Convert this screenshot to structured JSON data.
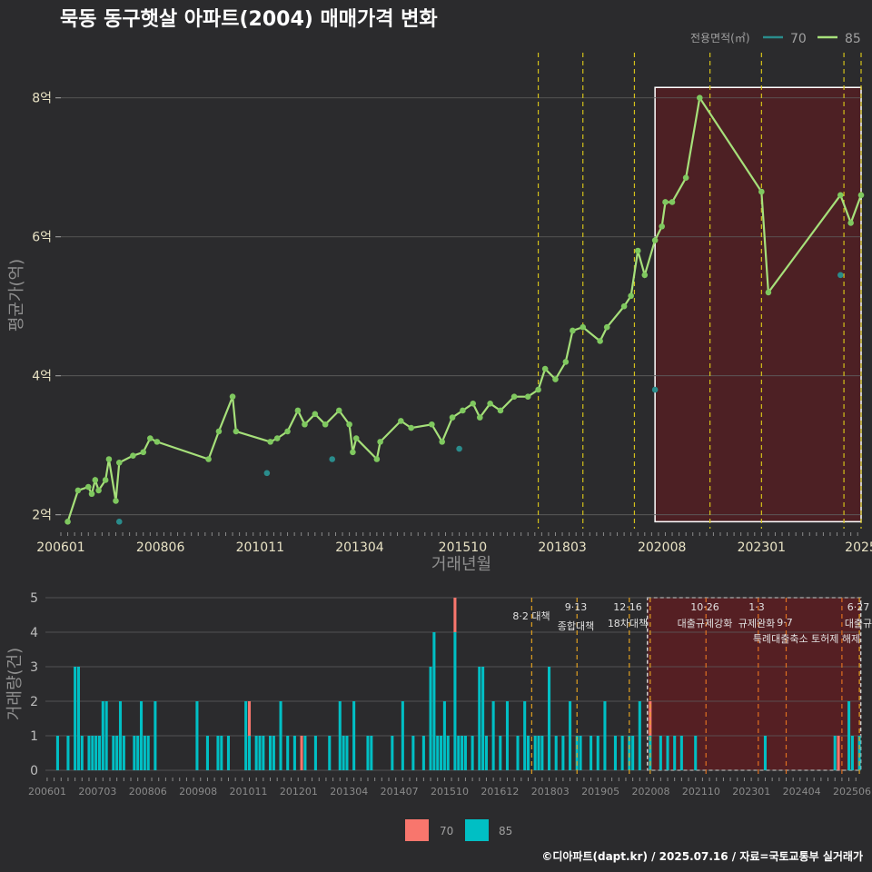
{
  "title": "묵동 동구햇살 아파트(2004) 매매가격 변화",
  "footer": "©디아파트(dapt.kr) / 2025.07.16 / 자료=국토교통부 실거래가",
  "legend_top": {
    "title": "전용면적(㎡)",
    "items": [
      {
        "label": "70",
        "color": "#2a8c8c"
      },
      {
        "label": "85",
        "color": "#a6e07a"
      }
    ]
  },
  "legend_bottom": {
    "items": [
      {
        "label": "70",
        "color": "#f8766d"
      },
      {
        "label": "85",
        "color": "#00bfc4"
      }
    ]
  },
  "chart_data": [
    {
      "type": "line",
      "id": "price",
      "xlabel": "거래년월",
      "ylabel": "평균가(억)",
      "ylim": [
        1.8,
        8.65
      ],
      "y_ticks": [
        2,
        4,
        6,
        8
      ],
      "y_tick_labels": [
        "2억",
        "4억",
        "6억",
        "8억"
      ],
      "x_ticks": [
        "2006-01",
        "2008-06",
        "2010-11",
        "2013-04",
        "2015-10",
        "2018-03",
        "2020-08",
        "2023-01",
        "2025-06"
      ],
      "x_tick_labels": [
        "200601",
        "200806",
        "201011",
        "201304",
        "201510",
        "201803",
        "202008",
        "202301",
        "2025"
      ],
      "shaded_region": {
        "from": "2020-06",
        "to": "2025-06",
        "color": "#5a1e22"
      },
      "event_lines": [
        "2017-08",
        "2018-09",
        "2019-12",
        "2021-10",
        "2023-01",
        "2025-01",
        "2025-06"
      ],
      "series": [
        {
          "name": "85",
          "color": "#a6e07a",
          "points": [
            [
              "2006-03",
              1.9
            ],
            [
              "2006-06",
              2.35
            ],
            [
              "2006-09",
              2.4
            ],
            [
              "2006-10",
              2.3
            ],
            [
              "2006-11",
              2.5
            ],
            [
              "2006-12",
              2.35
            ],
            [
              "2007-02",
              2.5
            ],
            [
              "2007-03",
              2.8
            ],
            [
              "2007-05",
              2.2
            ],
            [
              "2007-06",
              2.75
            ],
            [
              "2007-10",
              2.85
            ],
            [
              "2008-01",
              2.9
            ],
            [
              "2008-03",
              3.1
            ],
            [
              "2008-05",
              3.05
            ],
            [
              "2009-08",
              2.8
            ],
            [
              "2009-11",
              3.2
            ],
            [
              "2010-03",
              3.7
            ],
            [
              "2010-04",
              3.2
            ],
            [
              "2011-02",
              3.05
            ],
            [
              "2011-04",
              3.1
            ],
            [
              "2011-07",
              3.2
            ],
            [
              "2011-10",
              3.5
            ],
            [
              "2011-12",
              3.3
            ],
            [
              "2012-03",
              3.45
            ],
            [
              "2012-06",
              3.3
            ],
            [
              "2012-10",
              3.5
            ],
            [
              "2013-01",
              3.3
            ],
            [
              "2013-02",
              2.9
            ],
            [
              "2013-03",
              3.1
            ],
            [
              "2013-09",
              2.8
            ],
            [
              "2013-10",
              3.05
            ],
            [
              "2014-04",
              3.35
            ],
            [
              "2014-07",
              3.25
            ],
            [
              "2015-01",
              3.3
            ],
            [
              "2015-04",
              3.05
            ],
            [
              "2015-07",
              3.4
            ],
            [
              "2015-10",
              3.5
            ],
            [
              "2016-01",
              3.6
            ],
            [
              "2016-03",
              3.4
            ],
            [
              "2016-06",
              3.6
            ],
            [
              "2016-09",
              3.5
            ],
            [
              "2017-01",
              3.7
            ],
            [
              "2017-05",
              3.7
            ],
            [
              "2017-08",
              3.8
            ],
            [
              "2017-10",
              4.1
            ],
            [
              "2018-01",
              3.95
            ],
            [
              "2018-04",
              4.2
            ],
            [
              "2018-06",
              4.65
            ],
            [
              "2018-09",
              4.7
            ],
            [
              "2019-02",
              4.5
            ],
            [
              "2019-04",
              4.7
            ],
            [
              "2019-09",
              5.0
            ],
            [
              "2019-11",
              5.15
            ],
            [
              "2020-01",
              5.8
            ],
            [
              "2020-03",
              5.45
            ],
            [
              "2020-06",
              5.95
            ],
            [
              "2020-08",
              6.15
            ],
            [
              "2020-09",
              6.5
            ],
            [
              "2020-11",
              6.5
            ],
            [
              "2021-03",
              6.85
            ],
            [
              "2021-07",
              8.0
            ],
            [
              "2023-01",
              6.65
            ],
            [
              "2023-03",
              5.2
            ],
            [
              "2024-12",
              6.6
            ],
            [
              "2025-03",
              6.2
            ],
            [
              "2025-06",
              6.6
            ]
          ]
        },
        {
          "name": "70",
          "color": "#2a8c8c",
          "points": [
            [
              "2007-06",
              1.9
            ],
            [
              "2011-01",
              2.6
            ],
            [
              "2012-08",
              2.8
            ],
            [
              "2015-09",
              2.95
            ],
            [
              "2020-06",
              3.8
            ],
            [
              "2024-12",
              5.45
            ]
          ]
        }
      ]
    },
    {
      "type": "bar",
      "id": "volume",
      "ylabel": "거래량(건)",
      "ylim": [
        0,
        5
      ],
      "y_ticks": [
        0,
        1,
        2,
        3,
        4,
        5
      ],
      "x_tick_labels": [
        "200601",
        "200703",
        "200806",
        "200908",
        "201011",
        "201201",
        "201304",
        "201407",
        "201510",
        "201612",
        "201803",
        "201905",
        "202008",
        "202110",
        "202301",
        "202404",
        "202506"
      ],
      "shaded_region": {
        "from": "2020-06",
        "to": "2025-06",
        "color": "#5a1e22"
      },
      "events": [
        {
          "date": "2017-08",
          "label": "8·2 대책",
          "line2": ""
        },
        {
          "date": "2018-09",
          "label": "9·13",
          "line2": "종합대책"
        },
        {
          "date": "2019-12",
          "label": "12·16",
          "line2": "18차대책"
        },
        {
          "date": "2020-06",
          "label": "",
          "line2": ""
        },
        {
          "date": "2021-10",
          "label": "10·26",
          "line2": "대출규제강화"
        },
        {
          "date": "2023-01",
          "label": "1·3",
          "line2": "규제완화"
        },
        {
          "date": "2023-09",
          "label": "",
          "line2": "9·7 특례대출축소 토허제 해제"
        },
        {
          "date": "2025-01",
          "label": "",
          "line2": ""
        },
        {
          "date": "2025-06",
          "label": "6·27",
          "line2": "대출규"
        }
      ],
      "event_labels_shown": [
        "8·2 대책",
        "9·13",
        "종합대책",
        "12·16",
        "18차대책",
        "10·26",
        "대출규제강화",
        "1·3",
        "규제완화",
        "9·7",
        "특례대출축소 토허제 해제",
        "6·27",
        "대출규"
      ],
      "series": [
        {
          "name": "85",
          "color": "#00bfc4",
          "values_by_month": {
            "2006-04": 1,
            "2006-07": 1,
            "2006-09": 3,
            "2006-10": 3,
            "2006-11": 1,
            "2007-01": 1,
            "2007-02": 1,
            "2007-03": 1,
            "2007-04": 1,
            "2007-05": 2,
            "2007-06": 2,
            "2007-08": 1,
            "2007-09": 1,
            "2007-10": 2,
            "2007-11": 1,
            "2008-02": 1,
            "2008-03": 1,
            "2008-04": 2,
            "2008-05": 1,
            "2008-06": 1,
            "2008-08": 2,
            "2009-08": 2,
            "2009-11": 1,
            "2010-02": 1,
            "2010-03": 1,
            "2010-05": 1,
            "2010-10": 2,
            "2010-11": 1,
            "2011-01": 1,
            "2011-02": 1,
            "2011-03": 1,
            "2011-05": 1,
            "2011-06": 1,
            "2011-08": 2,
            "2011-10": 1,
            "2011-12": 1,
            "2012-03": 1,
            "2012-06": 1,
            "2012-10": 1,
            "2013-01": 2,
            "2013-02": 1,
            "2013-03": 1,
            "2013-05": 2,
            "2013-09": 1,
            "2013-10": 1,
            "2014-04": 1,
            "2014-07": 2,
            "2014-10": 1,
            "2015-01": 1,
            "2015-03": 3,
            "2015-04": 4,
            "2015-05": 1,
            "2015-06": 1,
            "2015-07": 2,
            "2015-08": 1,
            "2015-10": 4,
            "2015-11": 1,
            "2015-12": 1,
            "2016-01": 1,
            "2016-03": 1,
            "2016-05": 3,
            "2016-06": 3,
            "2016-07": 1,
            "2016-09": 2,
            "2016-11": 1,
            "2017-01": 2,
            "2017-04": 1,
            "2017-06": 2,
            "2017-07": 1,
            "2017-09": 1,
            "2017-10": 1,
            "2017-11": 1,
            "2018-01": 3,
            "2018-03": 1,
            "2018-05": 1,
            "2018-07": 2,
            "2018-09": 1,
            "2018-10": 1,
            "2019-01": 1,
            "2019-03": 1,
            "2019-05": 2,
            "2019-08": 1,
            "2019-10": 1,
            "2019-12": 1,
            "2020-01": 1,
            "2020-03": 2,
            "2020-06": 1,
            "2020-09": 1,
            "2020-11": 1,
            "2021-01": 1,
            "2021-03": 1,
            "2021-07": 1,
            "2023-03": 1,
            "2024-11": 1,
            "2025-03": 2,
            "2025-04": 1,
            "2025-06": 1
          }
        },
        {
          "name": "70",
          "color": "#f8766d",
          "values_by_month": {
            "2010-11": 1,
            "2012-02": 1,
            "2015-10": 1,
            "2020-06": 1,
            "2024-12": 1
          }
        }
      ]
    }
  ]
}
